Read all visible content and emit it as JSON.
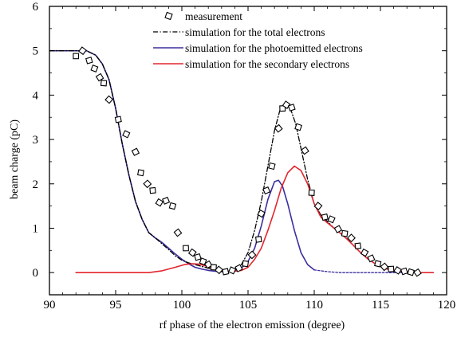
{
  "chart_data": {
    "type": "line",
    "title": "",
    "xlabel": "rf phase of the electron emission (degree)",
    "ylabel": "beam charge (pC)",
    "xlim": [
      90,
      120
    ],
    "ylim": [
      -0.5,
      6
    ],
    "xticks": [
      90,
      95,
      100,
      105,
      110,
      115,
      120
    ],
    "yticks": [
      0,
      1,
      2,
      3,
      4,
      5,
      6
    ],
    "grid": false,
    "legend_position": "top-right",
    "series": [
      {
        "name": "measurement",
        "kind": "scatter",
        "color": "#000000",
        "points": [
          [
            92.0,
            4.88
          ],
          [
            92.5,
            5.0
          ],
          [
            93.0,
            4.78
          ],
          [
            93.4,
            4.6
          ],
          [
            93.8,
            4.4
          ],
          [
            94.1,
            4.27
          ],
          [
            94.5,
            3.9
          ],
          [
            95.2,
            3.45
          ],
          [
            95.8,
            3.12
          ],
          [
            96.5,
            2.72
          ],
          [
            96.9,
            2.25
          ],
          [
            97.4,
            2.0
          ],
          [
            97.8,
            1.85
          ],
          [
            98.3,
            1.58
          ],
          [
            98.8,
            1.62
          ],
          [
            99.3,
            1.5
          ],
          [
            99.7,
            0.9
          ],
          [
            100.3,
            0.55
          ],
          [
            100.8,
            0.45
          ],
          [
            101.2,
            0.35
          ],
          [
            101.6,
            0.25
          ],
          [
            102.0,
            0.18
          ],
          [
            102.4,
            0.12
          ],
          [
            102.8,
            0.06
          ],
          [
            103.3,
            0.02
          ],
          [
            103.8,
            0.05
          ],
          [
            104.3,
            0.1
          ],
          [
            104.8,
            0.2
          ],
          [
            105.3,
            0.4
          ],
          [
            105.8,
            0.75
          ],
          [
            106.0,
            1.33
          ],
          [
            106.4,
            1.85
          ],
          [
            106.8,
            2.4
          ],
          [
            107.3,
            3.25
          ],
          [
            107.6,
            3.7
          ],
          [
            107.9,
            3.78
          ],
          [
            108.3,
            3.72
          ],
          [
            108.8,
            3.28
          ],
          [
            109.3,
            2.75
          ],
          [
            109.8,
            1.8
          ],
          [
            110.3,
            1.5
          ],
          [
            110.8,
            1.25
          ],
          [
            111.3,
            1.2
          ],
          [
            111.8,
            0.98
          ],
          [
            112.3,
            0.88
          ],
          [
            112.8,
            0.78
          ],
          [
            113.3,
            0.6
          ],
          [
            113.8,
            0.45
          ],
          [
            114.3,
            0.32
          ],
          [
            114.8,
            0.2
          ],
          [
            115.3,
            0.13
          ],
          [
            115.8,
            0.08
          ],
          [
            116.3,
            0.05
          ],
          [
            116.8,
            0.03
          ],
          [
            117.3,
            0.01
          ],
          [
            117.8,
            0.0
          ]
        ]
      },
      {
        "name": "simulation for the total electrons",
        "kind": "line",
        "style": "dashdot",
        "color": "#000000",
        "points": [
          [
            90,
            5.0
          ],
          [
            92.8,
            5.0
          ],
          [
            93.5,
            4.9
          ],
          [
            94.0,
            4.7
          ],
          [
            94.5,
            4.35
          ],
          [
            95.0,
            3.7
          ],
          [
            95.5,
            2.9
          ],
          [
            96.0,
            2.2
          ],
          [
            96.5,
            1.6
          ],
          [
            97.0,
            1.2
          ],
          [
            97.5,
            0.9
          ],
          [
            98.0,
            0.78
          ],
          [
            98.5,
            0.65
          ],
          [
            99.0,
            0.52
          ],
          [
            99.5,
            0.38
          ],
          [
            100.0,
            0.28
          ],
          [
            100.5,
            0.22
          ],
          [
            101.0,
            0.18
          ],
          [
            101.5,
            0.14
          ],
          [
            102.0,
            0.1
          ],
          [
            102.5,
            0.06
          ],
          [
            103.0,
            0.03
          ],
          [
            103.5,
            0.02
          ],
          [
            104.0,
            0.05
          ],
          [
            104.5,
            0.18
          ],
          [
            105.0,
            0.45
          ],
          [
            105.5,
            0.95
          ],
          [
            106.0,
            1.6
          ],
          [
            106.5,
            2.4
          ],
          [
            107.0,
            3.2
          ],
          [
            107.4,
            3.65
          ],
          [
            107.8,
            3.8
          ],
          [
            108.2,
            3.7
          ],
          [
            108.6,
            3.35
          ],
          [
            109.0,
            2.8
          ],
          [
            109.5,
            2.1
          ],
          [
            110.0,
            1.55
          ],
          [
            110.5,
            1.3
          ],
          [
            111.0,
            1.15
          ],
          [
            111.5,
            1.0
          ],
          [
            112.0,
            0.88
          ],
          [
            112.5,
            0.75
          ],
          [
            113.0,
            0.6
          ],
          [
            113.5,
            0.45
          ],
          [
            114.0,
            0.32
          ],
          [
            114.5,
            0.22
          ],
          [
            115.0,
            0.14
          ],
          [
            115.5,
            0.08
          ],
          [
            116.0,
            0.05
          ],
          [
            117.0,
            0.02
          ],
          [
            118.0,
            0.0
          ],
          [
            119.0,
            0.0
          ]
        ]
      },
      {
        "name": "simulation for the photoemitted electrons",
        "kind": "line",
        "style": "solid",
        "color": "#3a2f9e",
        "points": [
          [
            90,
            5.0
          ],
          [
            92.8,
            5.0
          ],
          [
            93.5,
            4.9
          ],
          [
            94.0,
            4.7
          ],
          [
            94.5,
            4.35
          ],
          [
            95.0,
            3.7
          ],
          [
            95.5,
            2.9
          ],
          [
            96.0,
            2.2
          ],
          [
            96.5,
            1.6
          ],
          [
            97.0,
            1.2
          ],
          [
            97.5,
            0.9
          ],
          [
            98.0,
            0.78
          ],
          [
            98.5,
            0.68
          ],
          [
            99.0,
            0.55
          ],
          [
            99.5,
            0.42
          ],
          [
            100.0,
            0.3
          ],
          [
            100.5,
            0.2
          ],
          [
            101.0,
            0.12
          ],
          [
            101.5,
            0.08
          ],
          [
            102.0,
            0.05
          ],
          [
            102.5,
            0.03
          ],
          [
            103.0,
            0.02
          ],
          [
            103.5,
            0.02
          ],
          [
            104.0,
            0.04
          ],
          [
            104.5,
            0.1
          ],
          [
            105.0,
            0.25
          ],
          [
            105.5,
            0.55
          ],
          [
            106.0,
            1.05
          ],
          [
            106.5,
            1.65
          ],
          [
            107.0,
            2.05
          ],
          [
            107.3,
            2.08
          ],
          [
            107.6,
            1.95
          ],
          [
            108.0,
            1.55
          ],
          [
            108.5,
            0.95
          ],
          [
            109.0,
            0.45
          ],
          [
            109.5,
            0.18
          ],
          [
            110.0,
            0.06
          ]
        ]
      },
      {
        "name": "",
        "kind": "line",
        "style": "dotted",
        "color": "#3a2f9e",
        "points": [
          [
            110.0,
            0.06
          ],
          [
            111.0,
            0.02
          ],
          [
            112.0,
            0.0
          ],
          [
            119.0,
            0.0
          ]
        ]
      },
      {
        "name": "simulation for the secondary electrons",
        "kind": "line",
        "style": "solid",
        "color": "#e3262f",
        "points": [
          [
            92.0,
            0.0
          ],
          [
            97.5,
            0.0
          ],
          [
            98.5,
            0.04
          ],
          [
            99.5,
            0.12
          ],
          [
            100.2,
            0.18
          ],
          [
            100.8,
            0.2
          ],
          [
            101.3,
            0.19
          ],
          [
            101.8,
            0.15
          ],
          [
            102.5,
            0.08
          ],
          [
            103.2,
            0.03
          ],
          [
            103.8,
            0.02
          ],
          [
            104.5,
            0.05
          ],
          [
            105.0,
            0.12
          ],
          [
            105.5,
            0.3
          ],
          [
            106.0,
            0.55
          ],
          [
            106.5,
            0.95
          ],
          [
            107.0,
            1.4
          ],
          [
            107.5,
            1.9
          ],
          [
            108.0,
            2.25
          ],
          [
            108.5,
            2.4
          ],
          [
            109.0,
            2.3
          ],
          [
            109.5,
            2.0
          ],
          [
            110.0,
            1.55
          ],
          [
            110.5,
            1.25
          ],
          [
            111.0,
            1.12
          ],
          [
            111.5,
            1.0
          ],
          [
            112.0,
            0.88
          ],
          [
            112.5,
            0.75
          ],
          [
            113.0,
            0.6
          ],
          [
            113.5,
            0.45
          ],
          [
            114.0,
            0.32
          ],
          [
            114.5,
            0.22
          ],
          [
            115.0,
            0.14
          ],
          [
            115.5,
            0.08
          ],
          [
            116.0,
            0.05
          ],
          [
            117.0,
            0.02
          ],
          [
            118.0,
            0.0
          ],
          [
            119.0,
            0.0
          ]
        ]
      }
    ]
  }
}
